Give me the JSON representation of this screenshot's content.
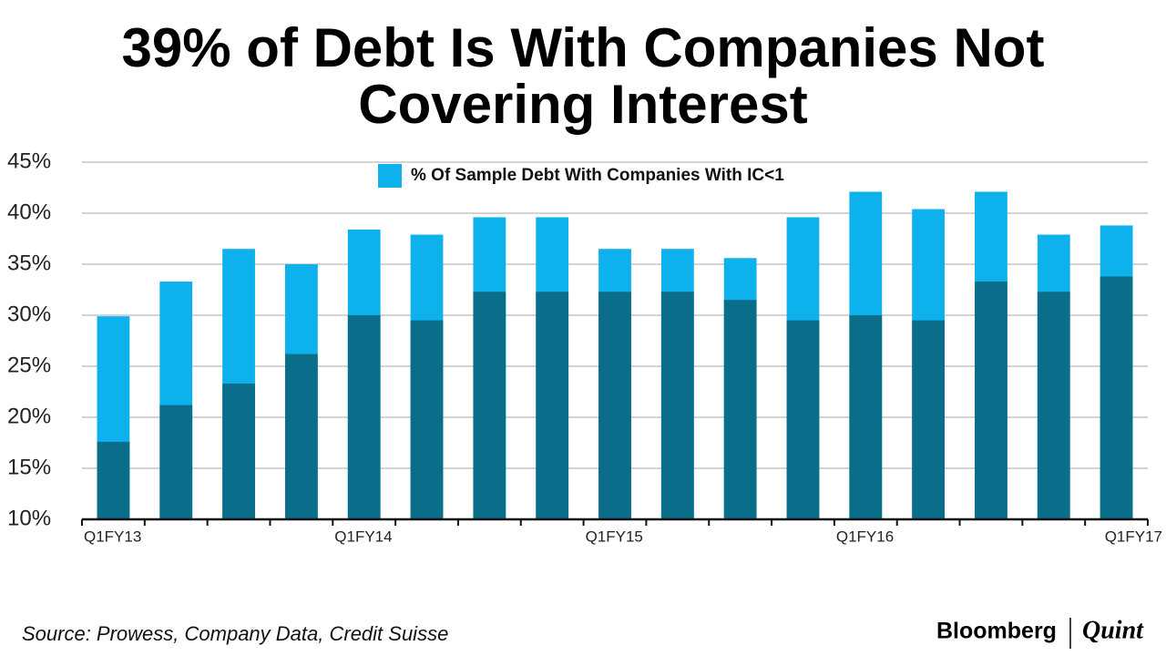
{
  "chart_data": {
    "type": "bar",
    "title": "39% of Debt Is With Companies Not Covering Interest",
    "categories": [
      "Q1FY13",
      null,
      null,
      null,
      "Q1FY14",
      null,
      null,
      null,
      "Q1FY15",
      null,
      null,
      null,
      "Q1FY16",
      null,
      null,
      null,
      "Q1FY17"
    ],
    "series": [
      {
        "name": "% Of Sample Debt With Companies With IC<1",
        "color": "#0db1ec",
        "values": [
          29.9,
          33.3,
          36.5,
          35,
          38.4,
          37.9,
          39.6,
          39.6,
          36.5,
          36.5,
          35.6,
          39.6,
          42.1,
          40.4,
          42.1,
          37.9,
          38.8
        ]
      },
      {
        "color": "#0a6e8a",
        "values": [
          17.6,
          21.2,
          23.3,
          26.2,
          30,
          29.5,
          32.3,
          32.3,
          32.3,
          32.3,
          31.5,
          29.5,
          30,
          29.5,
          33.3,
          32.3,
          33.8
        ]
      }
    ],
    "ylim": [
      10,
      45
    ],
    "yticks": [
      {
        "value": 10,
        "label": "10%"
      },
      {
        "value": 15,
        "label": "15%"
      },
      {
        "value": 20,
        "label": "20%"
      },
      {
        "value": 25,
        "label": "25%"
      },
      {
        "value": 30,
        "label": "30%"
      },
      {
        "value": 35,
        "label": "35%"
      },
      {
        "value": 40,
        "label": "40%"
      },
      {
        "value": 45,
        "label": "45%"
      }
    ],
    "grid": true,
    "legend": "top",
    "source": "Source: Prowess, Company Data, Credit Suisse",
    "brand": [
      "Bloomberg",
      "Quint"
    ]
  }
}
